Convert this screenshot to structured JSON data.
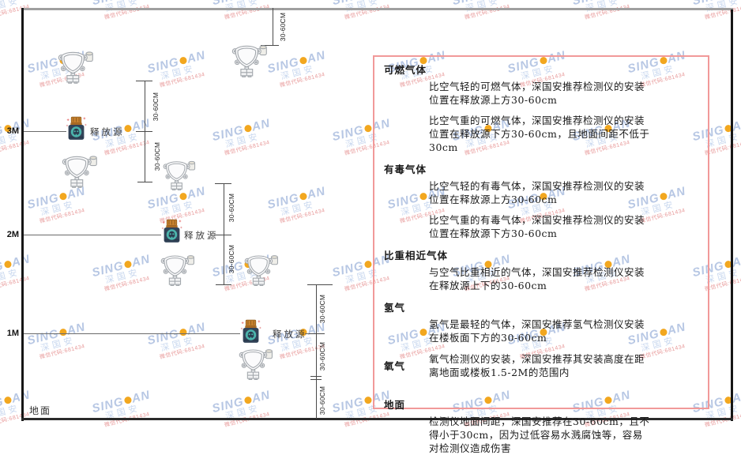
{
  "watermark": {
    "brand_left": "SING",
    "brand_right": "AN",
    "cn": "深国安",
    "red_text": "微信代码:681434"
  },
  "diagram": {
    "dim_label": "30-60CM",
    "source_label": "释放源",
    "ground_label": "地面",
    "levels": [
      {
        "label": "3M"
      },
      {
        "label": "2M"
      },
      {
        "label": "1M"
      }
    ]
  },
  "panel": {
    "border_color": "#f19999",
    "sections": [
      {
        "heading": "可燃气体",
        "paragraphs": [
          "比空气轻的可燃气体，深国安推荐检测仪的安装位置在释放源上方30-60cm",
          "比空气重的可燃气体，深国安推荐检测仪的安装位置在释放源下方30-60cm，且地面间距不低于30cm"
        ]
      },
      {
        "heading": "有毒气体",
        "paragraphs": [
          "比空气轻的有毒气体，深国安推荐检测仪的安装位置在释放源上方30-60cm",
          "比空气重的有毒气体，深国安推荐检测仪的安装位置在释放源下方30-60cm"
        ]
      },
      {
        "heading": "比重相近气体",
        "paragraphs": [
          "与空气比重相近的气体，深国安推荐检测仪安装在释放源上下的30-60cm"
        ]
      },
      {
        "heading": "氢气",
        "paragraphs": [
          "氢气是最轻的气体，深国安推荐氢气检测仪安装在楼板面下方的30-60cm"
        ]
      },
      {
        "heading": "氧气",
        "paragraphs": [
          "氧气检测仪的安装，深国安推荐其安装高度在距离地面或楼板1.5-2M的范围内"
        ]
      },
      {
        "heading": "地面",
        "paragraphs": [
          "检测仪地面间距，深国安推荐在30-60cm，且不得小于30cm，因为过低容易水溅腐蚀等，容易对检测仪造成伤害"
        ]
      }
    ]
  }
}
